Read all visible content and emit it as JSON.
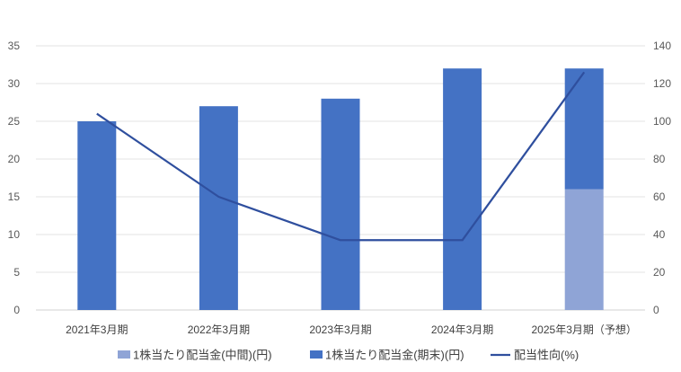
{
  "chart_data": {
    "type": "bar",
    "categories": [
      "2021年3月期",
      "2022年3月期",
      "2023年3月期",
      "2024年3月期",
      "2025年3月期（予想）"
    ],
    "series": [
      {
        "name": "1株当たり配当金(中間)(円)",
        "kind": "bar",
        "axis": "left",
        "color": "#8FA4D6",
        "values": [
          0,
          0,
          0,
          0,
          16
        ]
      },
      {
        "name": "1株当たり配当金(期末)(円)",
        "kind": "bar",
        "axis": "left",
        "color": "#4472C4",
        "values": [
          25,
          27,
          28,
          32,
          16
        ]
      },
      {
        "name": "配当性向(%)",
        "kind": "line",
        "axis": "right",
        "color": "#2F4F9E",
        "values": [
          104,
          60,
          37,
          37,
          126
        ]
      }
    ],
    "stacked": true,
    "y_left": {
      "ylim": [
        0,
        35
      ],
      "ticks": [
        0,
        5,
        10,
        15,
        20,
        25,
        30,
        35
      ]
    },
    "y_right": {
      "ylim": [
        0,
        140
      ],
      "ticks": [
        0,
        20,
        40,
        60,
        80,
        100,
        120,
        140
      ]
    },
    "grid": true,
    "legend": "bottom",
    "title": "",
    "xlabel": "",
    "ylabel": ""
  }
}
